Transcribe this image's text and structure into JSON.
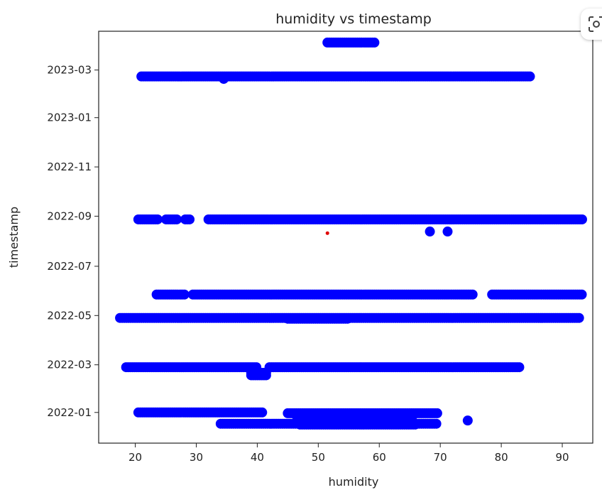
{
  "colors": {
    "marker": "#0000ff",
    "highlight": "#e00000",
    "axis": "#222222",
    "background": "#ffffff"
  },
  "overlay": {
    "icon": "visual-search-icon"
  },
  "chart_data": {
    "type": "scatter",
    "title": "humidity vs timestamp",
    "xlabel": "humidity",
    "ylabel": "timestamp",
    "xlim": [
      14,
      95
    ],
    "ylim": [
      "2021-11-24",
      "2023-04-18"
    ],
    "x_ticks": [
      20,
      30,
      40,
      50,
      60,
      70,
      80,
      90
    ],
    "x_tick_labels": [
      "20",
      "30",
      "40",
      "50",
      "60",
      "70",
      "80",
      "90"
    ],
    "y_ticks": [
      "2022-01-01",
      "2022-03-01",
      "2022-05-01",
      "2022-07-01",
      "2022-09-01",
      "2022-11-01",
      "2023-01-01",
      "2023-03-01"
    ],
    "y_tick_labels": [
      "2022-01",
      "2022-03",
      "2022-05",
      "2022-07",
      "2022-09",
      "2022-11",
      "2023-01",
      "2023-03"
    ],
    "grid": false,
    "legend": "none",
    "series": [
      {
        "color": "#0000ff",
        "points": [
          {
            "date": "2023-04-04",
            "x_from": 51.5,
            "x_to": 59.3
          },
          {
            "date": "2023-02-21",
            "x_from": 21,
            "x_to": 85
          },
          {
            "date": "2023-02-18",
            "x": 34.5
          },
          {
            "date": "2022-08-28",
            "x_from": 20.5,
            "x_to": 29,
            "gaps": [
              [
                24,
                25
              ],
              [
                27,
                28
              ]
            ]
          },
          {
            "date": "2022-08-28",
            "x_from": 32,
            "x_to": 93.5
          },
          {
            "date": "2022-08-13",
            "x": 68.3
          },
          {
            "date": "2022-08-13",
            "x": 71.2
          },
          {
            "date": "2022-05-27",
            "x_from": 23.5,
            "x_to": 75.5,
            "gaps": [
              [
                28.3,
                29.3
              ]
            ]
          },
          {
            "date": "2022-05-27",
            "x_from": 78.5,
            "x_to": 93.5
          },
          {
            "date": "2022-04-28",
            "x_from": 17.5,
            "x_to": 93
          },
          {
            "date": "2022-04-27",
            "x_from": 45,
            "x_to": 55
          },
          {
            "date": "2022-02-26",
            "x_from": 18.5,
            "x_to": 40
          },
          {
            "date": "2022-02-26",
            "x_from": 42,
            "x_to": 83
          },
          {
            "date": "2022-02-19",
            "x_from": 39,
            "x_to": 41.5
          },
          {
            "date": "2022-02-16",
            "x_from": 39,
            "x_to": 41.5
          },
          {
            "date": "2022-01-01",
            "x_from": 20.5,
            "x_to": 41
          },
          {
            "date": "2021-12-31",
            "x_from": 45,
            "x_to": 69.5
          },
          {
            "date": "2021-12-27",
            "x_from": 46.5,
            "x_to": 65.5
          },
          {
            "date": "2021-12-22",
            "x_from": 47,
            "x_to": 65.5
          },
          {
            "date": "2021-12-22",
            "x": 74.5
          },
          {
            "date": "2021-12-18",
            "x_from": 34,
            "x_to": 69.5
          },
          {
            "date": "2021-12-17",
            "x_from": 47,
            "x_to": 66
          }
        ]
      },
      {
        "color": "#e00000",
        "points": [
          {
            "date": "2022-08-11",
            "x": 51.5
          }
        ]
      }
    ]
  }
}
